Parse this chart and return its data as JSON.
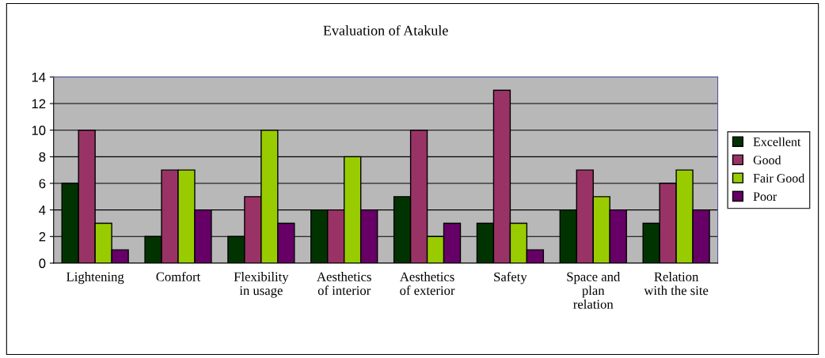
{
  "chart_data": {
    "type": "bar",
    "title": "Evaluation of Atakule",
    "categories": [
      "Lightening",
      "Comfort",
      "Flexibility\nin usage",
      "Aesthetics\nof interior",
      "Aesthetics\nof exterior",
      "Safety",
      "Space and\nplan\nrelation",
      "Relation\nwith the site"
    ],
    "series": [
      {
        "name": "Excellent",
        "color": "#003300",
        "values": [
          6,
          2,
          2,
          4,
          5,
          3,
          4,
          3
        ]
      },
      {
        "name": "Good",
        "color": "#993366",
        "values": [
          10,
          7,
          5,
          4,
          10,
          13,
          7,
          6
        ]
      },
      {
        "name": "Fair Good",
        "color": "#99cc00",
        "values": [
          3,
          7,
          10,
          8,
          2,
          3,
          5,
          7
        ]
      },
      {
        "name": "Poor",
        "color": "#660066",
        "values": [
          1,
          4,
          3,
          4,
          3,
          1,
          4,
          4
        ]
      }
    ],
    "ylim": [
      0,
      14
    ],
    "yticks": [
      0,
      2,
      4,
      6,
      8,
      10,
      12,
      14
    ],
    "grid": "y",
    "legend": "right"
  }
}
